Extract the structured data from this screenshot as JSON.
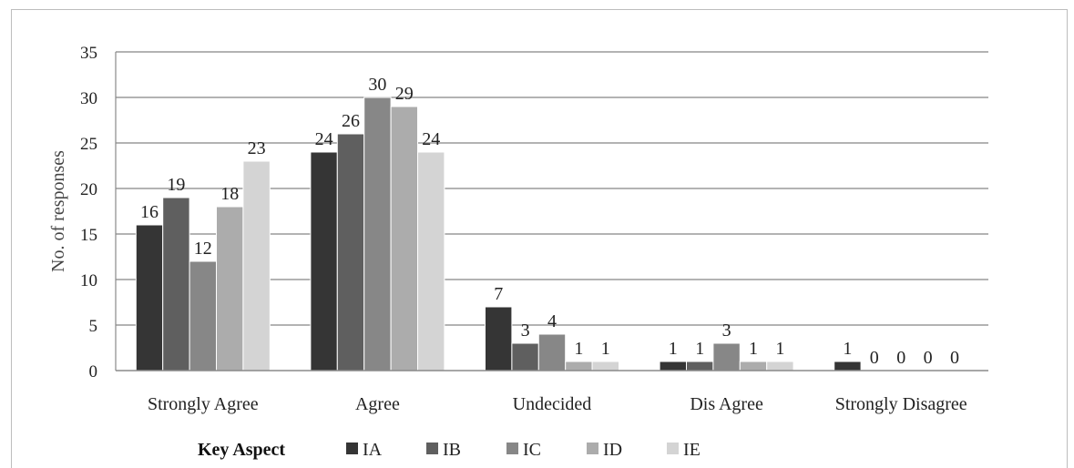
{
  "chart_data": {
    "type": "bar",
    "categories": [
      "Strongly Agree",
      "Agree",
      "Undecided",
      "Dis Agree",
      "Strongly Disagree"
    ],
    "series": [
      {
        "name": "IA",
        "values": [
          16,
          24,
          7,
          1,
          1
        ],
        "color": "#353535"
      },
      {
        "name": "IB",
        "values": [
          19,
          26,
          3,
          1,
          0
        ],
        "color": "#5f5f5f"
      },
      {
        "name": "IC",
        "values": [
          12,
          30,
          4,
          3,
          0
        ],
        "color": "#878787"
      },
      {
        "name": "ID",
        "values": [
          18,
          29,
          1,
          1,
          0
        ],
        "color": "#acacac"
      },
      {
        "name": "IE",
        "values": [
          23,
          24,
          1,
          1,
          0
        ],
        "color": "#d4d4d4"
      }
    ],
    "ylabel": "No. of responses",
    "ylim": [
      0,
      35
    ],
    "yticks": [
      0,
      5,
      10,
      15,
      20,
      25,
      30,
      35
    ],
    "grid": true,
    "legend_title": "Key Aspect",
    "legend_position": "bottom"
  }
}
